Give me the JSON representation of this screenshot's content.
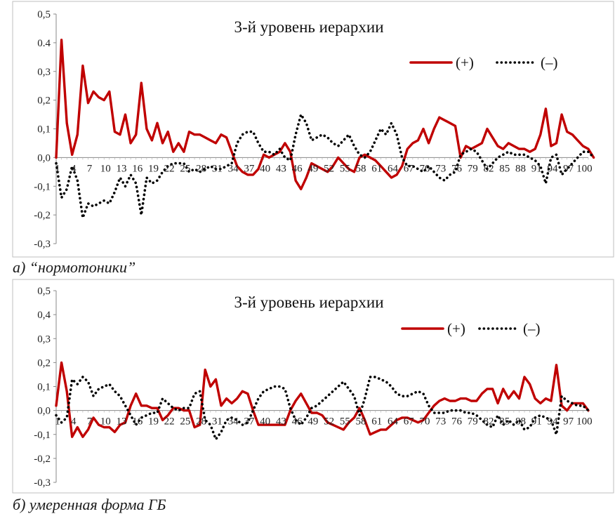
{
  "chart_data": [
    {
      "type": "line",
      "title": "3-й уровень иерархии",
      "caption": "а) “нормотоники”",
      "ylim": [
        -0.3,
        0.5
      ],
      "yticks": [
        "-0,3",
        "-0,2",
        "-0,1",
        "0,0",
        "0,1",
        "0,2",
        "0,3",
        "0.4",
        "0,5"
      ],
      "xticks": [
        1,
        4,
        7,
        10,
        13,
        16,
        19,
        22,
        25,
        28,
        31,
        34,
        37,
        40,
        43,
        46,
        49,
        52,
        55,
        58,
        61,
        64,
        67,
        70,
        73,
        76,
        79,
        82,
        85,
        88,
        91,
        94,
        97,
        100
      ],
      "x_start": 1,
      "x_end": 101,
      "legend_position": "top-right",
      "series": [
        {
          "name": "(+)",
          "color": "#c00000",
          "style": "solid",
          "values": [
            0.0,
            0.41,
            0.12,
            0.01,
            0.08,
            0.32,
            0.19,
            0.23,
            0.21,
            0.2,
            0.23,
            0.09,
            0.08,
            0.15,
            0.05,
            0.08,
            0.26,
            0.1,
            0.06,
            0.12,
            0.05,
            0.09,
            0.02,
            0.05,
            0.02,
            0.09,
            0.08,
            0.08,
            0.07,
            0.06,
            0.05,
            0.08,
            0.07,
            0.02,
            -0.03,
            -0.05,
            -0.06,
            -0.06,
            -0.04,
            0.01,
            0.0,
            0.01,
            0.02,
            0.05,
            0.02,
            -0.08,
            -0.11,
            -0.07,
            -0.02,
            -0.03,
            -0.04,
            -0.05,
            -0.03,
            0.0,
            -0.02,
            -0.04,
            -0.05,
            0.0,
            0.01,
            0.0,
            -0.01,
            -0.03,
            -0.05,
            -0.07,
            -0.06,
            -0.03,
            0.03,
            0.05,
            0.06,
            0.1,
            0.05,
            0.1,
            0.14,
            0.13,
            0.12,
            0.11,
            0.0,
            0.04,
            0.03,
            0.04,
            0.05,
            0.1,
            0.07,
            0.04,
            0.03,
            0.05,
            0.04,
            0.03,
            0.03,
            0.02,
            0.03,
            0.08,
            0.17,
            0.04,
            0.05,
            0.15,
            0.09,
            0.08,
            0.06,
            0.04,
            0.03,
            0.0
          ]
        },
        {
          "name": "(–)",
          "color": "#000000",
          "style": "dotted",
          "values": [
            -0.02,
            -0.14,
            -0.11,
            -0.03,
            -0.08,
            -0.21,
            -0.16,
            -0.17,
            -0.16,
            -0.15,
            -0.16,
            -0.12,
            -0.07,
            -0.1,
            -0.06,
            -0.09,
            -0.2,
            -0.07,
            -0.09,
            -0.08,
            -0.05,
            -0.03,
            -0.02,
            -0.02,
            -0.02,
            -0.05,
            -0.04,
            -0.05,
            -0.04,
            -0.03,
            -0.04,
            -0.04,
            -0.03,
            -0.02,
            0.05,
            0.08,
            0.09,
            0.09,
            0.05,
            0.02,
            0.02,
            0.01,
            0.03,
            0.0,
            -0.01,
            0.08,
            0.15,
            0.12,
            0.06,
            0.07,
            0.08,
            0.07,
            0.05,
            0.04,
            0.06,
            0.08,
            0.04,
            0.01,
            0.0,
            0.02,
            0.06,
            0.1,
            0.08,
            0.12,
            0.08,
            0.0,
            -0.03,
            -0.03,
            -0.04,
            -0.05,
            -0.03,
            -0.05,
            -0.07,
            -0.08,
            -0.06,
            -0.05,
            0.01,
            0.02,
            0.03,
            0.02,
            -0.01,
            -0.04,
            -0.02,
            0.0,
            0.01,
            0.02,
            0.01,
            0.01,
            0.01,
            0.0,
            -0.01,
            -0.03,
            -0.09,
            0.0,
            0.01,
            -0.06,
            -0.04,
            -0.02,
            0.0,
            0.02,
            0.02,
            0.0
          ]
        }
      ]
    },
    {
      "type": "line",
      "title": "3-й уровень иерархии",
      "caption": "б) умеренная форма ГБ",
      "ylim": [
        -0.3,
        0.5
      ],
      "yticks": [
        "-0,3",
        "-0,2",
        "-0,1",
        "0,0",
        "0,1",
        "0,2",
        "0,3",
        "0,4",
        "0,5"
      ],
      "xticks": [
        1,
        4,
        7,
        10,
        13,
        16,
        19,
        22,
        25,
        28,
        31,
        34,
        37,
        40,
        43,
        46,
        49,
        52,
        55,
        58,
        61,
        64,
        67,
        70,
        73,
        76,
        79,
        82,
        85,
        88,
        91,
        94,
        97,
        100
      ],
      "x_start": 1,
      "x_end": 101,
      "legend_position": "top-right",
      "series": [
        {
          "name": "(+)",
          "color": "#c00000",
          "style": "solid",
          "values": [
            0.02,
            0.2,
            0.08,
            -0.11,
            -0.07,
            -0.11,
            -0.08,
            -0.03,
            -0.06,
            -0.07,
            -0.07,
            -0.09,
            -0.06,
            -0.05,
            0.02,
            0.07,
            0.02,
            0.02,
            0.01,
            0.01,
            -0.04,
            -0.02,
            0.01,
            0.01,
            0.0,
            0.0,
            -0.07,
            -0.06,
            0.17,
            0.1,
            0.13,
            0.02,
            0.05,
            0.03,
            0.05,
            0.08,
            0.07,
            0.0,
            -0.06,
            -0.06,
            -0.06,
            -0.06,
            -0.06,
            -0.06,
            0.0,
            0.04,
            0.07,
            0.03,
            -0.01,
            -0.01,
            -0.02,
            -0.05,
            -0.06,
            -0.07,
            -0.08,
            -0.05,
            -0.03,
            0.01,
            -0.04,
            -0.1,
            -0.09,
            -0.08,
            -0.08,
            -0.06,
            -0.04,
            -0.03,
            -0.03,
            -0.04,
            -0.05,
            -0.04,
            -0.01,
            0.02,
            0.04,
            0.05,
            0.04,
            0.04,
            0.05,
            0.05,
            0.04,
            0.04,
            0.07,
            0.09,
            0.09,
            0.03,
            0.09,
            0.05,
            0.08,
            0.05,
            0.14,
            0.11,
            0.05,
            0.03,
            0.05,
            0.04,
            0.19,
            0.02,
            0.0,
            0.03,
            0.03,
            0.03,
            0.0
          ]
        },
        {
          "name": "(–)",
          "color": "#000000",
          "style": "dotted",
          "values": [
            -0.02,
            -0.05,
            -0.03,
            0.13,
            0.11,
            0.14,
            0.12,
            0.06,
            0.09,
            0.1,
            0.11,
            0.08,
            0.06,
            0.02,
            -0.02,
            -0.06,
            -0.03,
            -0.02,
            -0.01,
            -0.01,
            0.05,
            0.03,
            0.01,
            0.0,
            0.01,
            0.01,
            0.07,
            0.08,
            -0.04,
            -0.06,
            -0.12,
            -0.09,
            -0.04,
            -0.03,
            -0.04,
            -0.06,
            -0.05,
            0.0,
            0.05,
            0.08,
            0.09,
            0.1,
            0.1,
            0.09,
            0.01,
            -0.04,
            -0.06,
            -0.03,
            0.01,
            0.02,
            0.04,
            0.06,
            0.08,
            0.1,
            0.12,
            0.09,
            0.06,
            -0.02,
            0.05,
            0.14,
            0.14,
            0.13,
            0.12,
            0.1,
            0.07,
            0.06,
            0.06,
            0.07,
            0.08,
            0.07,
            0.02,
            -0.01,
            -0.01,
            -0.01,
            0.0,
            0.0,
            0.0,
            -0.01,
            -0.01,
            -0.02,
            -0.04,
            -0.06,
            -0.07,
            -0.02,
            -0.06,
            -0.04,
            -0.06,
            -0.04,
            -0.08,
            -0.07,
            -0.03,
            -0.02,
            -0.03,
            -0.04,
            -0.1,
            0.06,
            0.04,
            0.03,
            0.02,
            0.02,
            0.0
          ]
        }
      ]
    }
  ]
}
